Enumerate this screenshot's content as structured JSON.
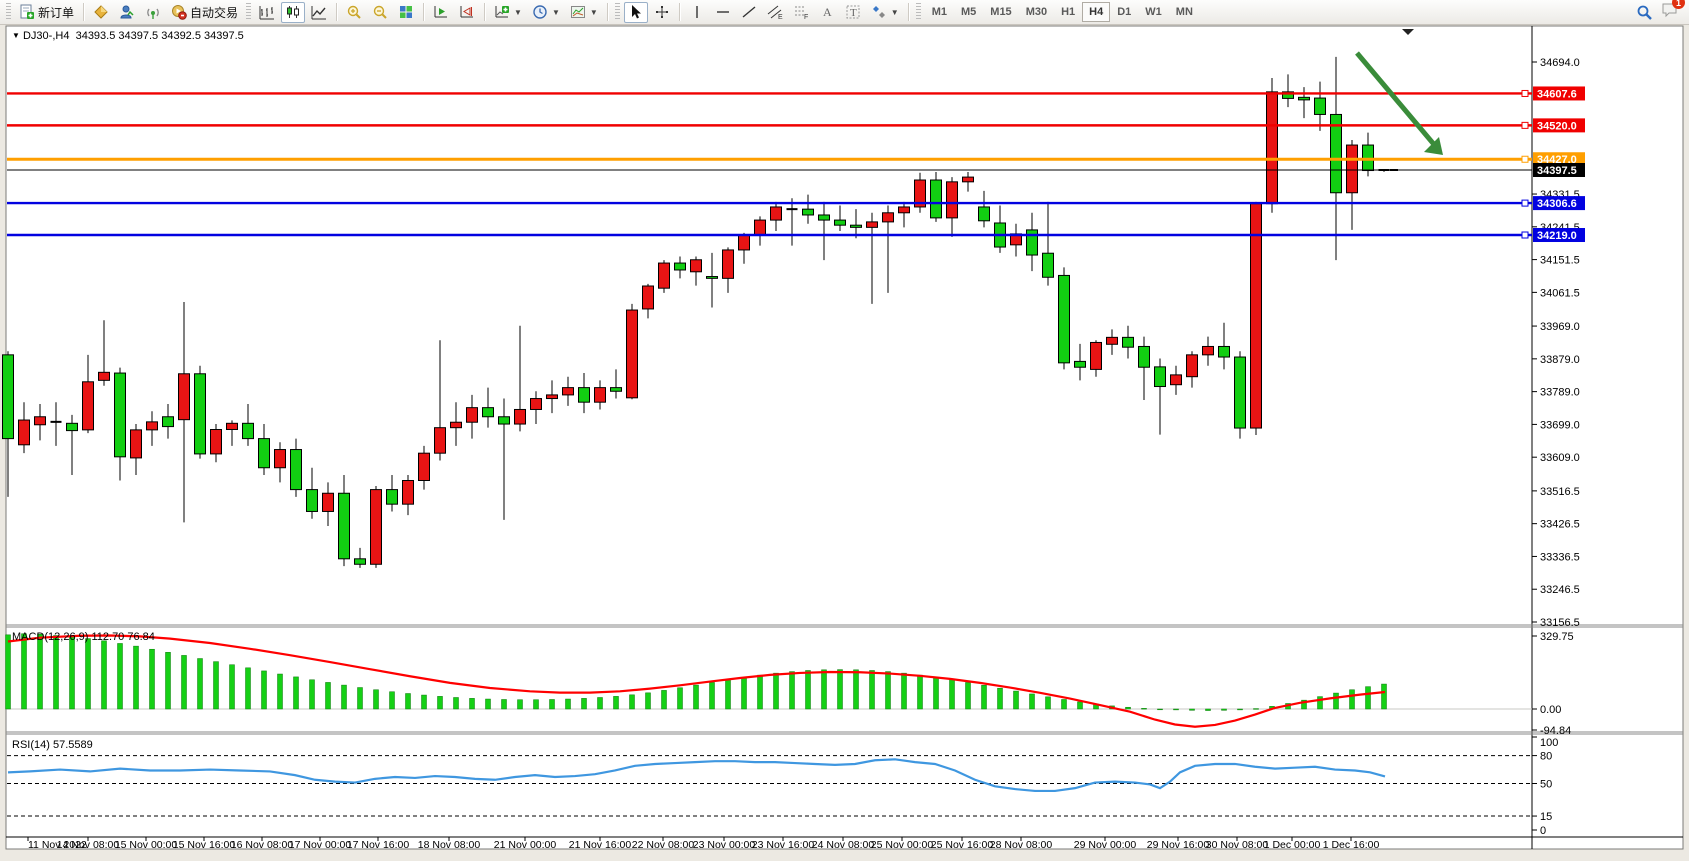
{
  "toolbar": {
    "new_order_label": "新订单",
    "autotrading_label": "自动交易",
    "timeframes": [
      "M1",
      "M5",
      "M15",
      "M30",
      "H1",
      "H4",
      "D1",
      "W1",
      "MN"
    ],
    "active_timeframe": "H4",
    "notification_count": "1"
  },
  "chart": {
    "title": {
      "marker": "▼",
      "symbol_period": "DJ30-,H4",
      "ohlc": "34393.5 34397.5 34392.5 34397.5"
    },
    "colors": {
      "bull": "#e81414",
      "bear": "#12ce12",
      "wick": "#000000",
      "red_line": "#f00000",
      "orange_line": "#ff9f00",
      "blue_line": "#0202e0",
      "price_line": "#000000",
      "arrow": "#3a8c3a",
      "macd_hist": "#15d015",
      "macd_signal": "#ff0000",
      "rsi_line": "#3f97e0"
    },
    "scale": {
      "price_top": 34694.0,
      "price_bottom": 33156.5
    },
    "price_ticks": [
      34694.0,
      34331.5,
      34241.5,
      34151.5,
      34061.5,
      33969.0,
      33879.0,
      33789.0,
      33699.0,
      33609.0,
      33516.5,
      33426.5,
      33336.5,
      33246.5,
      33156.5
    ],
    "hlines": [
      {
        "price": 34607.6,
        "color": "#f00000",
        "label": "34607.6"
      },
      {
        "price": 34520.0,
        "color": "#f00000",
        "label": "34520.0"
      },
      {
        "price": 34427.0,
        "color": "#ff9f00",
        "label": "34427.0"
      },
      {
        "price": 34306.6,
        "color": "#0202e0",
        "label": "34306.6"
      },
      {
        "price": 34219.0,
        "color": "#0202e0",
        "label": "34219.0"
      }
    ],
    "current_price": {
      "value": 34397.5,
      "label": "34397.5"
    },
    "candles": [
      [
        33890,
        33900,
        33500,
        33660
      ],
      [
        33643,
        33760,
        33620,
        33711
      ],
      [
        33698,
        33755,
        33655,
        33720
      ],
      [
        33705,
        33760,
        33640,
        33706
      ],
      [
        33702,
        33725,
        33560,
        33682
      ],
      [
        33684,
        33890,
        33675,
        33816
      ],
      [
        33820,
        33985,
        33805,
        33842
      ],
      [
        33840,
        33855,
        33545,
        33610
      ],
      [
        33607,
        33700,
        33560,
        33684
      ],
      [
        33684,
        33735,
        33640,
        33706
      ],
      [
        33720,
        33755,
        33660,
        33693
      ],
      [
        33712,
        34035,
        33430,
        33838
      ],
      [
        33838,
        33860,
        33605,
        33618
      ],
      [
        33618,
        33700,
        33595,
        33685
      ],
      [
        33685,
        33710,
        33640,
        33702
      ],
      [
        33702,
        33755,
        33640,
        33660
      ],
      [
        33660,
        33700,
        33560,
        33580
      ],
      [
        33580,
        33650,
        33540,
        33630
      ],
      [
        33630,
        33660,
        33500,
        33520
      ],
      [
        33520,
        33580,
        33440,
        33460
      ],
      [
        33460,
        33540,
        33420,
        33510
      ],
      [
        33510,
        33560,
        33310,
        33330
      ],
      [
        33330,
        33360,
        33305,
        33315
      ],
      [
        33315,
        33530,
        33305,
        33520
      ],
      [
        33520,
        33560,
        33460,
        33480
      ],
      [
        33480,
        33560,
        33450,
        33545
      ],
      [
        33545,
        33640,
        33520,
        33620
      ],
      [
        33620,
        33930,
        33600,
        33690
      ],
      [
        33690,
        33760,
        33640,
        33705
      ],
      [
        33705,
        33780,
        33660,
        33745
      ],
      [
        33745,
        33800,
        33690,
        33720
      ],
      [
        33720,
        33770,
        33437,
        33700
      ],
      [
        33700,
        33970,
        33680,
        33740
      ],
      [
        33740,
        33790,
        33700,
        33770
      ],
      [
        33770,
        33820,
        33730,
        33780
      ],
      [
        33780,
        33830,
        33750,
        33800
      ],
      [
        33800,
        33840,
        33730,
        33760
      ],
      [
        33760,
        33820,
        33740,
        33800
      ],
      [
        33800,
        33850,
        33770,
        33790
      ],
      [
        33772,
        34030,
        33768,
        34013
      ],
      [
        34016,
        34085,
        33990,
        34079
      ],
      [
        34073,
        34150,
        34060,
        34142
      ],
      [
        34142,
        34160,
        34100,
        34123
      ],
      [
        34118,
        34160,
        34080,
        34151
      ],
      [
        34105,
        34170,
        34020,
        34100
      ],
      [
        34100,
        34185,
        34060,
        34178
      ],
      [
        34178,
        34225,
        34140,
        34219
      ],
      [
        34219,
        34270,
        34190,
        34260
      ],
      [
        34260,
        34310,
        34230,
        34296
      ],
      [
        34288,
        34320,
        34190,
        34290
      ],
      [
        34290,
        34330,
        34250,
        34274
      ],
      [
        34274,
        34310,
        34150,
        34260
      ],
      [
        34260,
        34300,
        34230,
        34246
      ],
      [
        34246,
        34290,
        34210,
        34240
      ],
      [
        34240,
        34280,
        34030,
        34255
      ],
      [
        34255,
        34300,
        34060,
        34280
      ],
      [
        34280,
        34310,
        34240,
        34296
      ],
      [
        34296,
        34390,
        34280,
        34370
      ],
      [
        34370,
        34392,
        34255,
        34266
      ],
      [
        34266,
        34378,
        34214,
        34365
      ],
      [
        34365,
        34392,
        34338,
        34378
      ],
      [
        34296,
        34340,
        34240,
        34258
      ],
      [
        34252,
        34300,
        34170,
        34186
      ],
      [
        34192,
        34250,
        34160,
        34222
      ],
      [
        34233,
        34280,
        34120,
        34164
      ],
      [
        34169,
        34310,
        34080,
        34103
      ],
      [
        34108,
        34130,
        33850,
        33868
      ],
      [
        33872,
        33920,
        33820,
        33856
      ],
      [
        33850,
        33930,
        33830,
        33924
      ],
      [
        33919,
        33960,
        33890,
        33938
      ],
      [
        33938,
        33970,
        33880,
        33911
      ],
      [
        33913,
        33940,
        33766,
        33856
      ],
      [
        33857,
        33880,
        33671,
        33803
      ],
      [
        33808,
        33860,
        33780,
        33835
      ],
      [
        33830,
        33900,
        33800,
        33890
      ],
      [
        33890,
        33940,
        33860,
        33913
      ],
      [
        33913,
        33978,
        33850,
        33884
      ],
      [
        33884,
        33900,
        33660,
        33689
      ],
      [
        33689,
        34310,
        33670,
        34305
      ],
      [
        34305,
        34650,
        34280,
        34612
      ],
      [
        34612,
        34660,
        34570,
        34594
      ],
      [
        34597,
        34625,
        34540,
        34590
      ],
      [
        34595,
        34640,
        34505,
        34550
      ],
      [
        34550,
        34708,
        34150,
        34335
      ],
      [
        34335,
        34480,
        34233,
        34466
      ],
      [
        34466,
        34500,
        34380,
        34396
      ],
      [
        34393.5,
        34397.5,
        34392.5,
        34397.5
      ]
    ],
    "arrow": {
      "from": [
        1357,
        53
      ],
      "to": [
        1443,
        155
      ]
    },
    "macd": {
      "label": "MACD(12,26,9) 112.70 76.84",
      "axis": [
        "329.75",
        "0.00",
        "-94.84"
      ],
      "axis_values": [
        329.75,
        0.0,
        -94.84
      ],
      "hist": [
        335,
        340,
        338,
        332,
        326,
        318,
        308,
        296,
        284,
        270,
        256,
        242,
        228,
        214,
        200,
        186,
        172,
        158,
        145,
        132,
        120,
        108,
        97,
        87,
        78,
        70,
        63,
        57,
        52,
        48,
        45,
        43,
        42,
        42,
        43,
        45,
        48,
        52,
        57,
        64,
        73,
        84,
        96,
        108,
        120,
        132,
        143,
        153,
        162,
        169,
        174,
        177,
        178,
        177,
        174,
        169,
        162,
        153,
        143,
        132,
        120,
        107,
        94,
        81,
        68,
        55,
        43,
        32,
        22,
        14,
        8,
        3,
        -1,
        -4,
        -6,
        -7,
        -6,
        -4,
        2,
        12,
        25,
        40,
        56,
        72,
        87,
        101,
        112.7
      ],
      "signal": [
        [
          8,
          305
        ],
        [
          40,
          322
        ],
        [
          80,
          331
        ],
        [
          110,
          332
        ],
        [
          140,
          328
        ],
        [
          170,
          318
        ],
        [
          210,
          298
        ],
        [
          250,
          272
        ],
        [
          290,
          243
        ],
        [
          330,
          212
        ],
        [
          370,
          180
        ],
        [
          410,
          148
        ],
        [
          450,
          118
        ],
        [
          490,
          95
        ],
        [
          530,
          80
        ],
        [
          560,
          74
        ],
        [
          590,
          74
        ],
        [
          620,
          80
        ],
        [
          650,
          92
        ],
        [
          680,
          107
        ],
        [
          710,
          124
        ],
        [
          740,
          140
        ],
        [
          770,
          154
        ],
        [
          800,
          163
        ],
        [
          830,
          167
        ],
        [
          860,
          166
        ],
        [
          890,
          160
        ],
        [
          920,
          150
        ],
        [
          950,
          136
        ],
        [
          980,
          118
        ],
        [
          1010,
          97
        ],
        [
          1040,
          73
        ],
        [
          1070,
          47
        ],
        [
          1100,
          18
        ],
        [
          1130,
          -12
        ],
        [
          1155,
          -48
        ],
        [
          1175,
          -70
        ],
        [
          1195,
          -80
        ],
        [
          1215,
          -72
        ],
        [
          1235,
          -52
        ],
        [
          1255,
          -25
        ],
        [
          1275,
          5
        ],
        [
          1300,
          28
        ],
        [
          1330,
          48
        ],
        [
          1360,
          65
        ],
        [
          1385,
          76.84
        ]
      ]
    },
    "rsi": {
      "label": "RSI(14) 57.5589",
      "axis": [
        "100",
        "80",
        "50",
        "15",
        "0"
      ],
      "axis_values": [
        100,
        80,
        50,
        15,
        0
      ],
      "levels": [
        80,
        50,
        15
      ],
      "points": [
        [
          8,
          62
        ],
        [
          30,
          63
        ],
        [
          60,
          65
        ],
        [
          90,
          63
        ],
        [
          120,
          66
        ],
        [
          150,
          64
        ],
        [
          180,
          64
        ],
        [
          210,
          65
        ],
        [
          240,
          64
        ],
        [
          270,
          63
        ],
        [
          295,
          59
        ],
        [
          315,
          54
        ],
        [
          335,
          52
        ],
        [
          355,
          51
        ],
        [
          375,
          55
        ],
        [
          395,
          57
        ],
        [
          415,
          56
        ],
        [
          435,
          58
        ],
        [
          455,
          57
        ],
        [
          475,
          55
        ],
        [
          495,
          54
        ],
        [
          515,
          57
        ],
        [
          535,
          59
        ],
        [
          555,
          57
        ],
        [
          575,
          58
        ],
        [
          595,
          60
        ],
        [
          615,
          64
        ],
        [
          635,
          69
        ],
        [
          655,
          71
        ],
        [
          675,
          72
        ],
        [
          695,
          73
        ],
        [
          715,
          74
        ],
        [
          735,
          74
        ],
        [
          755,
          73
        ],
        [
          775,
          73
        ],
        [
          795,
          72
        ],
        [
          815,
          71
        ],
        [
          835,
          70
        ],
        [
          855,
          71
        ],
        [
          875,
          75
        ],
        [
          895,
          76
        ],
        [
          915,
          73
        ],
        [
          935,
          71
        ],
        [
          955,
          64
        ],
        [
          975,
          54
        ],
        [
          995,
          47
        ],
        [
          1015,
          44
        ],
        [
          1035,
          42
        ],
        [
          1055,
          42
        ],
        [
          1075,
          45
        ],
        [
          1095,
          51
        ],
        [
          1115,
          52
        ],
        [
          1135,
          51
        ],
        [
          1150,
          49
        ],
        [
          1160,
          45
        ],
        [
          1170,
          52
        ],
        [
          1180,
          62
        ],
        [
          1195,
          69
        ],
        [
          1215,
          71
        ],
        [
          1235,
          71
        ],
        [
          1255,
          68
        ],
        [
          1275,
          66
        ],
        [
          1295,
          67
        ],
        [
          1315,
          68
        ],
        [
          1335,
          65
        ],
        [
          1355,
          64
        ],
        [
          1370,
          62
        ],
        [
          1385,
          57.56
        ]
      ]
    },
    "time_labels": [
      [
        "11 Nov 2022",
        28
      ],
      [
        "14 Nov 08:00",
        88
      ],
      [
        "15 Nov 00:00",
        146
      ],
      [
        "15 Nov 16:00",
        204
      ],
      [
        "16 Nov 08:00",
        262
      ],
      [
        "17 Nov 00:00",
        320
      ],
      [
        "17 Nov 16:00",
        378
      ],
      [
        "18 Nov 08:00",
        449
      ],
      [
        "21 Nov 00:00",
        525
      ],
      [
        "21 Nov 16:00",
        600
      ],
      [
        "22 Nov 08:00",
        663
      ],
      [
        "23 Nov 00:00",
        724
      ],
      [
        "23 Nov 16:00",
        783
      ],
      [
        "24 Nov 08:00",
        843
      ],
      [
        "25 Nov 00:00",
        902
      ],
      [
        "25 Nov 16:00",
        962
      ],
      [
        "28 Nov 08:00",
        1021
      ],
      [
        "29 Nov 00:00",
        1105
      ],
      [
        "29 Nov 16:00",
        1178
      ],
      [
        "30 Nov 08:00",
        1237
      ],
      [
        "1 Dec 00:00",
        1292
      ],
      [
        "1 Dec 16:00",
        1351
      ]
    ]
  }
}
